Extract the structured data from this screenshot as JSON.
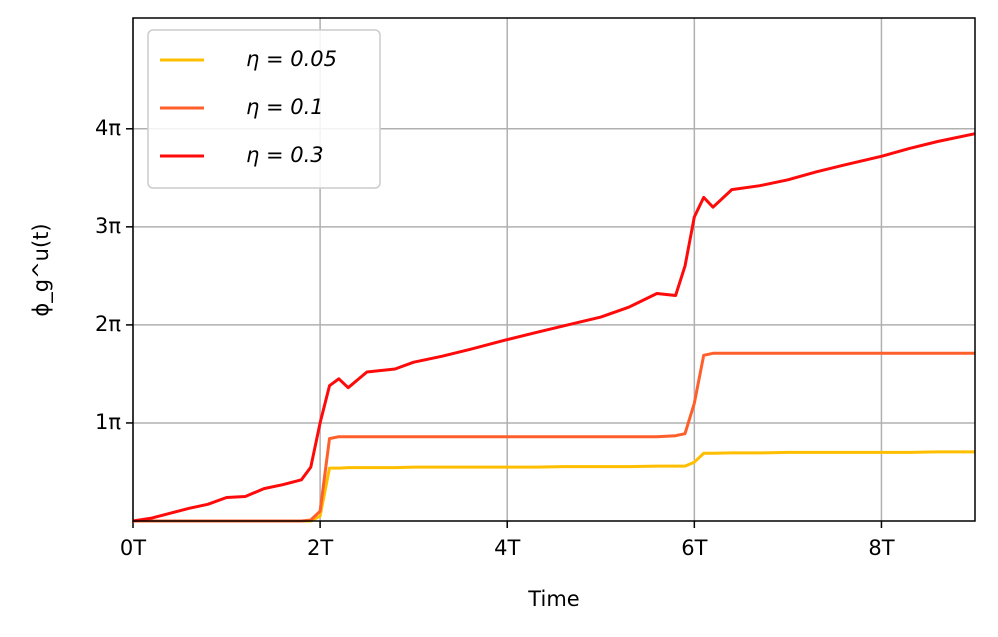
{
  "chart_data": {
    "type": "line",
    "xlabel": "Time",
    "ylabel": "ϕ_g^u(t)",
    "x": [
      0,
      0.2,
      0.4,
      0.6,
      0.8,
      1.0,
      1.2,
      1.4,
      1.6,
      1.8,
      1.9,
      2.0,
      2.1,
      2.2,
      2.3,
      2.5,
      2.8,
      3.0,
      3.3,
      3.6,
      4.0,
      4.3,
      4.6,
      5.0,
      5.3,
      5.6,
      5.8,
      5.9,
      6.0,
      6.1,
      6.2,
      6.4,
      6.7,
      7.0,
      7.3,
      7.6,
      8.0,
      8.3,
      8.6,
      9.0
    ],
    "series": [
      {
        "name": "η = 0.05",
        "color": "#ffbf00",
        "values": [
          0,
          0,
          0,
          0,
          0,
          0,
          0,
          0,
          0,
          0,
          0,
          0.05,
          0.54,
          0.54,
          0.545,
          0.545,
          0.545,
          0.55,
          0.55,
          0.55,
          0.55,
          0.55,
          0.555,
          0.555,
          0.555,
          0.56,
          0.56,
          0.56,
          0.6,
          0.69,
          0.69,
          0.695,
          0.695,
          0.7,
          0.7,
          0.7,
          0.7,
          0.7,
          0.705,
          0.705
        ]
      },
      {
        "name": "η = 0.1",
        "color": "#ff5f2a",
        "values": [
          0,
          0,
          0,
          0,
          0,
          0,
          0,
          0,
          0,
          0,
          0.01,
          0.1,
          0.84,
          0.86,
          0.86,
          0.86,
          0.86,
          0.86,
          0.86,
          0.86,
          0.86,
          0.86,
          0.86,
          0.86,
          0.86,
          0.86,
          0.87,
          0.89,
          1.2,
          1.69,
          1.71,
          1.71,
          1.71,
          1.71,
          1.71,
          1.71,
          1.71,
          1.71,
          1.71,
          1.71
        ]
      },
      {
        "name": "η = 0.3",
        "color": "#ff0a0a",
        "values": [
          0,
          0.03,
          0.08,
          0.13,
          0.17,
          0.24,
          0.25,
          0.33,
          0.37,
          0.42,
          0.55,
          1.0,
          1.38,
          1.45,
          1.36,
          1.52,
          1.55,
          1.62,
          1.68,
          1.75,
          1.85,
          1.92,
          1.99,
          2.08,
          2.18,
          2.32,
          2.3,
          2.6,
          3.1,
          3.3,
          3.2,
          3.38,
          3.42,
          3.48,
          3.56,
          3.63,
          3.72,
          3.8,
          3.87,
          3.95
        ]
      }
    ],
    "xlim": [
      0,
      9
    ],
    "xticks": [
      {
        "value": 0,
        "label": "0T"
      },
      {
        "value": 2,
        "label": "2T"
      },
      {
        "value": 4,
        "label": "4T"
      },
      {
        "value": 6,
        "label": "6T"
      },
      {
        "value": 8,
        "label": "8T"
      }
    ],
    "ylim": [
      0,
      5.13
    ],
    "yticks": [
      {
        "value": 1,
        "label": "1π"
      },
      {
        "value": 2,
        "label": "2π"
      },
      {
        "value": 3,
        "label": "3π"
      },
      {
        "value": 4,
        "label": "4π"
      }
    ],
    "grid": true,
    "legend": "upper left"
  }
}
